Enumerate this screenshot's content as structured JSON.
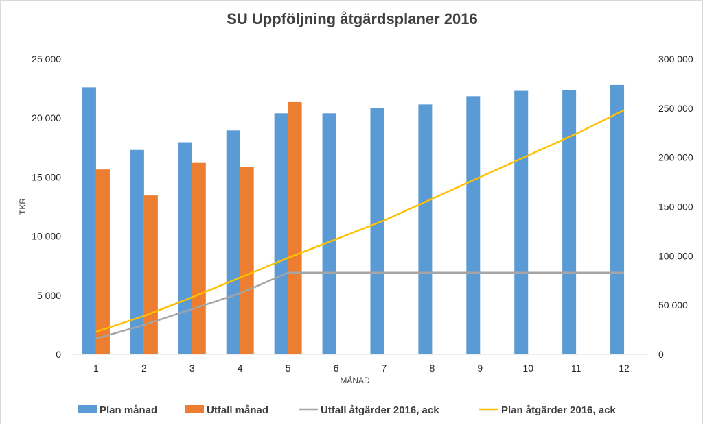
{
  "chart_data": {
    "type": "bar",
    "title": "SU Uppföljning åtgärdsplaner 2016",
    "xlabel": "MÅNAD",
    "ylabel": "TKR",
    "categories": [
      "1",
      "2",
      "3",
      "4",
      "5",
      "6",
      "7",
      "8",
      "9",
      "10",
      "11",
      "12"
    ],
    "ylim": [
      0,
      25000
    ],
    "y2lim": [
      0,
      300000
    ],
    "y_ticks": [
      "0",
      "5 000",
      "10 000",
      "15 000",
      "20 000",
      "25 000"
    ],
    "y2_ticks": [
      "0",
      "50 000",
      "100 000",
      "150 000",
      "200 000",
      "250 000",
      "300 000"
    ],
    "grid": false,
    "legend_position": "bottom",
    "series": [
      {
        "name": "Plan månad",
        "kind": "bar",
        "axis": "left",
        "color": "#5B9BD5",
        "values": [
          22600,
          17300,
          17950,
          18950,
          20400,
          20400,
          20850,
          21150,
          21850,
          22300,
          22350,
          22800
        ]
      },
      {
        "name": "Utfall månad",
        "kind": "bar",
        "axis": "left",
        "color": "#ED7D31",
        "values": [
          15650,
          13450,
          16200,
          15850,
          21350,
          null,
          null,
          null,
          null,
          null,
          null,
          null
        ]
      },
      {
        "name": "Utfall åtgärder 2016, ack",
        "kind": "line",
        "axis": "right",
        "color": "#A5A5A5",
        "values": [
          16000,
          30000,
          46000,
          62000,
          83000,
          83000,
          83000,
          83000,
          83000,
          83000,
          83000,
          83000
        ]
      },
      {
        "name": "Plan åtgärder 2016, ack",
        "kind": "line",
        "axis": "right",
        "color": "#FFC000",
        "values": [
          23000,
          39000,
          58000,
          78000,
          98000,
          117000,
          136000,
          158000,
          180000,
          202000,
          224000,
          248000
        ]
      }
    ]
  }
}
